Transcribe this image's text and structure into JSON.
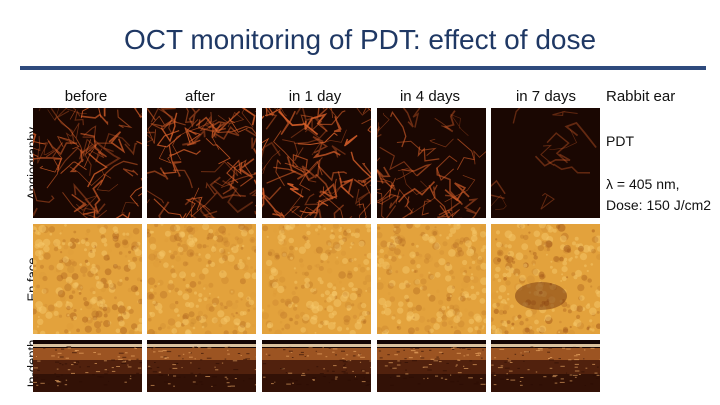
{
  "title": "OCT monitoring of PDT: effect of dose",
  "columns": [
    "before",
    "after",
    "in 1 day",
    "in 4 days",
    "in 7 days"
  ],
  "rows": {
    "angiography": "Angiography",
    "enface": "En face",
    "indepth": "In-depth"
  },
  "side": {
    "subject": "Rabbit ear",
    "treatment": "PDT",
    "wavelength": "λ = 405 nm,",
    "dose": "Dose: 150 J/cm2"
  },
  "colors": {
    "title": "#1f3864",
    "rule": "#2e4a7d",
    "angio_bg": "#1a0702",
    "angio_vessel": "#d9602a",
    "enface_bg": "#e3a23c",
    "enface_dark": "#a65a1a"
  },
  "panel_intensity": {
    "angiography": [
      0.75,
      0.8,
      0.9,
      0.55,
      0.1
    ],
    "enface_darkness": [
      0.45,
      0.35,
      0.3,
      0.35,
      0.55
    ]
  }
}
